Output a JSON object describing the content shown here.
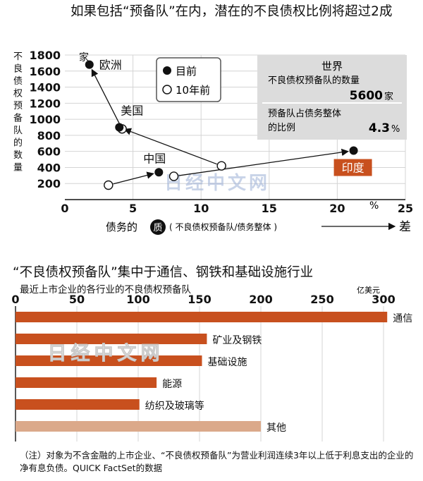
{
  "chart_data": [
    {
      "type": "scatter",
      "title": "如果包括“预备队”在内，潜在的不良债权比例将超过2成",
      "ylabel": "不良债权预备队的数量",
      "y_unit": "家",
      "xlabel": "债务的",
      "xlabel_badge": "质",
      "xlabel_note": "( 不良债权预备队/债务整体 )",
      "x_unit": "%",
      "x_end_label": "差",
      "xlim": [
        0,
        25
      ],
      "ylim": [
        0,
        1800
      ],
      "x_ticks": [
        "0",
        "5",
        "10",
        "15",
        "20",
        "25"
      ],
      "y_ticks": [
        "200",
        "400",
        "600",
        "800",
        "1000",
        "1200",
        "1400",
        "1600",
        "1800"
      ],
      "legend": [
        {
          "marker": "filled",
          "label": "目前"
        },
        {
          "marker": "hollow",
          "label": "10年前"
        }
      ],
      "series": [
        {
          "label": "欧洲",
          "current": {
            "x": 1.8,
            "y": 1680
          },
          "past": {
            "x": 4.2,
            "y": 880
          }
        },
        {
          "label": "美国",
          "current": {
            "x": 4.0,
            "y": 900
          },
          "past": {
            "x": 11.5,
            "y": 420
          }
        },
        {
          "label": "中国",
          "current": {
            "x": 6.9,
            "y": 340
          },
          "past": {
            "x": 3.2,
            "y": 180
          }
        },
        {
          "label": "印度",
          "current": {
            "x": 21.2,
            "y": 610
          },
          "past": {
            "x": 8.0,
            "y": 290
          }
        }
      ],
      "world_box": {
        "title": "世界",
        "count_label": "不良债权预备队的数量",
        "count_value": "5600",
        "count_unit": "家",
        "ratio_label_1": "预备队占债务整体",
        "ratio_label_2": "的比例",
        "ratio_value": "4.3",
        "ratio_unit": "%"
      },
      "watermark": "日经中文网",
      "highlight_color": "#c8501e"
    },
    {
      "type": "bar",
      "orientation": "horizontal",
      "title": "“不良债权预备队”集中于通信、钢铁和基础设施行业",
      "subtitle": "最近上市企业的各行业的不良债权预备队",
      "unit": "亿美元",
      "xlim": [
        0,
        300
      ],
      "x_ticks": [
        "0",
        "50",
        "100",
        "150",
        "200",
        "250",
        "300"
      ],
      "categories": [
        "通信",
        "矿业及钢铁",
        "基础设施",
        "能源",
        "纺织及玻璃等",
        "其他"
      ],
      "values": [
        303,
        156,
        152,
        115,
        101,
        200
      ],
      "colors": [
        "#c8501e",
        "#c8501e",
        "#c8501e",
        "#c8501e",
        "#c8501e",
        "#dba98a"
      ],
      "watermark": "日经中文网"
    }
  ],
  "note": "（注）对象为不含金融的上市企业、“不良债权预备队”为营业利润连续3年以上低于利息支出的企业的净有息负债。QUICK FactSet的数据"
}
